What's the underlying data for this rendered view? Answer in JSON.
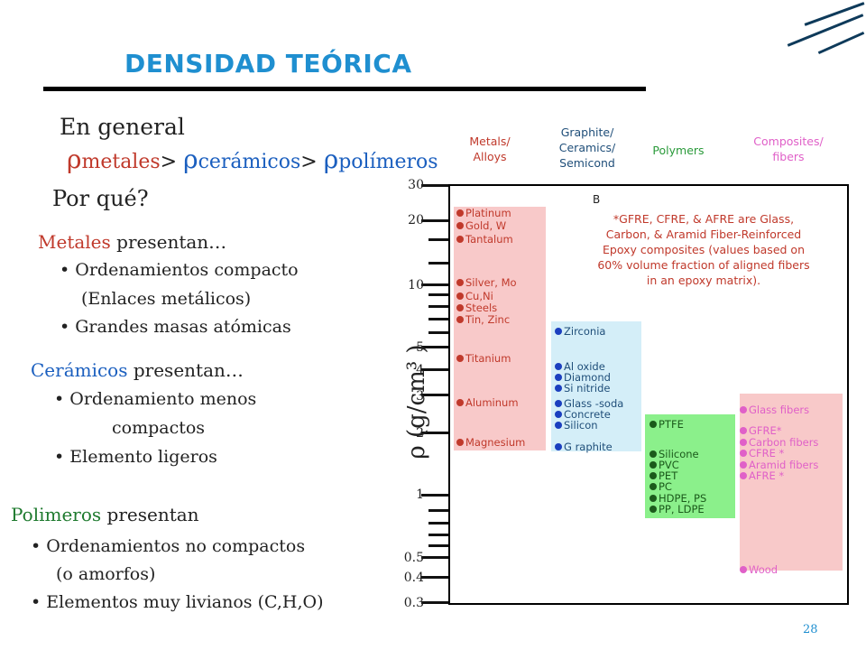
{
  "slide": {
    "title": "DENSIDAD TEÓRICA",
    "page_number": "28"
  },
  "left": {
    "general": "En general",
    "rho": "ρ",
    "sub_metales": "metales",
    "gt": ">",
    "sub_ceramicos": "cerámicos",
    "sub_polimeros": "polímeros",
    "por_que": "Por qué?",
    "metales_head_red": "Metales",
    "metales_head_rest": " presentan…",
    "metales_bullets": [
      "Ordenamientos compacto",
      "(Enlaces metálicos)",
      "Grandes masas atómicas"
    ],
    "ceramicos_head_blue": "Cerámicos",
    "ceramicos_head_rest": " presentan…",
    "ceramicos_bullets": [
      "Ordenamiento menos",
      "compactos",
      "Elemento ligeros"
    ],
    "polimeros_head_green": "Polimeros",
    "polimeros_head_rest": " presentan",
    "polimeros_bullets": [
      "Ordenamientos no compactos",
      "(o amorfos)",
      "Elementos muy livianos (C,H,O)"
    ]
  },
  "chart": {
    "axis_label": "ρ (g/cm³ )",
    "y_ticks": [
      "30",
      "20",
      "10",
      "5",
      "4",
      "3",
      "2",
      "1",
      "0.5",
      "0.4",
      "0.3"
    ],
    "columns": [
      {
        "line1": "Metals/",
        "line2": "Alloys",
        "line3": ""
      },
      {
        "line1": "Graphite/",
        "line2": "Ceramics/",
        "line3": "Semicond"
      },
      {
        "line1": "Polymers",
        "line2": "",
        "line3": ""
      },
      {
        "line1": "Composites/",
        "line2": "fibers",
        "line3": ""
      }
    ],
    "metals": [
      "Platinum",
      "Gold, W",
      "Tantalum",
      "Silver, Mo",
      "Cu,Ni",
      "Steels",
      "Tin, Zinc",
      "Titanium",
      "Aluminum",
      "Magnesium"
    ],
    "ceramics": [
      "Zirconia",
      "Al oxide",
      "Diamond",
      "Si nitride",
      "Glass -soda",
      "Concrete",
      "Silicon",
      "G raphite"
    ],
    "polymers": [
      "PTFE",
      "Silicone",
      "PVC",
      "PET",
      "PC",
      "HDPE, PS",
      "PP, LDPE"
    ],
    "composites": [
      "Glass fibers",
      "GFRE*",
      "Carbon  fibers",
      "CFRE *",
      "Aramid fibers",
      "AFRE *",
      "Wood"
    ],
    "note_letter": "B",
    "note_lines": [
      "*GFRE, CFRE, & AFRE are Glass,",
      "Carbon, & Aramid Fiber-Reinforced",
      "Epoxy composites (values based on",
      "60% volume fraction of aligned fibers",
      "in an epoxy matrix)."
    ],
    "colors": {
      "metal_band": "#f8c9c9",
      "ceramic_band": "#d4eef8",
      "polymer_band": "#8bf08b",
      "composite_band": "#f8c9c9"
    }
  }
}
